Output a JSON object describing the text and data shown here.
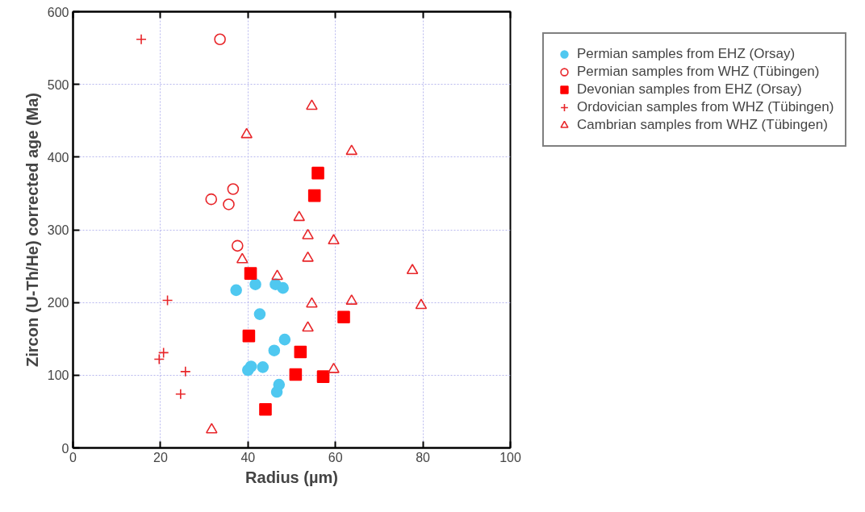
{
  "chart_data": {
    "type": "scatter",
    "xlabel": "Radius (µm)",
    "ylabel": "Zircon (U-Th/He) corrected age (Ma)",
    "xlim": [
      0,
      100
    ],
    "xticks": [
      0,
      20,
      40,
      60,
      80,
      100
    ],
    "ylim": [
      0,
      600
    ],
    "yticks": [
      0,
      100,
      200,
      300,
      400,
      500,
      600
    ],
    "grid": true,
    "legend": "right",
    "series": [
      {
        "name": "Permian samples from EHZ (Orsay)",
        "color": "#4fc8f0",
        "marker": "circle",
        "x": [
          37.3,
          41.7,
          46.3,
          48.0,
          42.7,
          48.4,
          46.0,
          40.7,
          40.0,
          43.4,
          47.1,
          46.6
        ],
        "values": [
          217,
          225,
          225,
          220,
          184,
          149,
          134,
          112,
          107,
          111,
          87,
          77
        ]
      },
      {
        "name": "Permian samples from WHZ (Tübingen)",
        "color": "#e8262a",
        "marker": "circle",
        "x": [
          33.6,
          36.6,
          31.6,
          35.6,
          37.6
        ],
        "values": [
          562,
          356,
          342,
          335,
          278
        ]
      },
      {
        "name": "Devonian samples from EHZ (Orsay)",
        "color": "#ff0000",
        "marker": "square",
        "x": [
          40.6,
          40.2,
          52.0,
          50.9,
          57.2,
          44.0,
          61.9,
          56.0,
          55.2
        ],
        "values": [
          240,
          154,
          132,
          101,
          98,
          53,
          180,
          378,
          347
        ]
      },
      {
        "name": "Ordovician samples from WHZ (Tübingen)",
        "color": "#e8262a",
        "marker": "cross",
        "x": [
          15.6,
          21.6,
          20.7,
          19.7,
          25.7,
          24.6
        ],
        "values": [
          562,
          203,
          131,
          122,
          105,
          74
        ]
      },
      {
        "name": "Cambrian samples from WHZ (Tübingen)",
        "color": "#e8262a",
        "marker": "triangle",
        "x": [
          39.7,
          54.6,
          63.7,
          51.7,
          53.7,
          59.6,
          38.7,
          53.7,
          46.7,
          77.6,
          54.6,
          63.7,
          79.6,
          53.7,
          59.6,
          31.7
        ],
        "values": [
          431,
          470,
          408,
          317,
          292,
          285,
          259,
          261,
          236,
          244,
          198,
          202,
          196,
          165,
          108,
          25
        ]
      }
    ]
  }
}
